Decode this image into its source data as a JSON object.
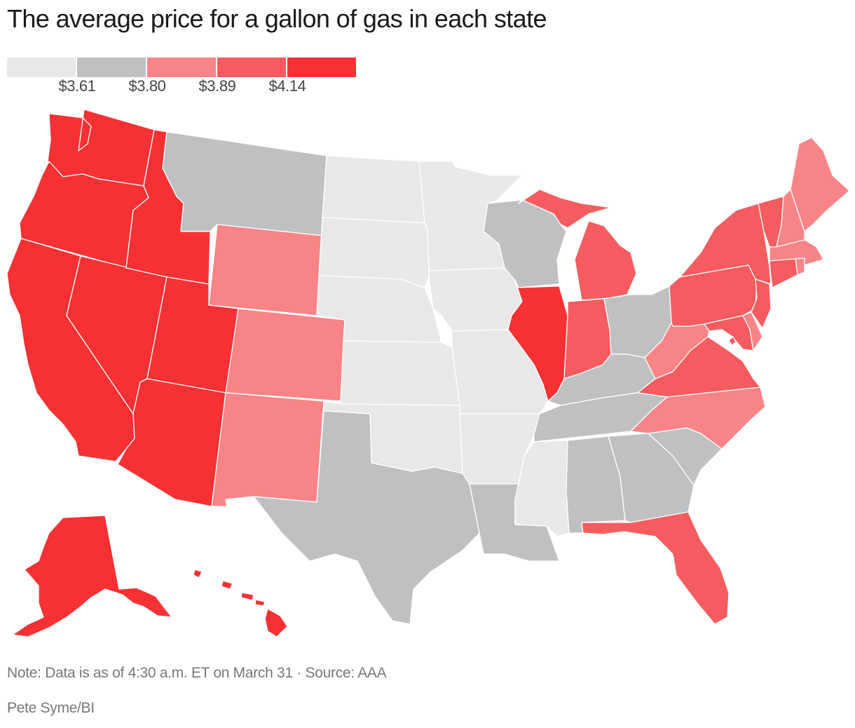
{
  "title": "The average price for a gallon of gas in each state",
  "legend": {
    "colors": [
      "#e8e8e8",
      "#bfc0c2",
      "#f98487",
      "#f55c5f",
      "#f53134"
    ],
    "ticks": [
      "$3.61",
      "$3.80",
      "$3.89",
      "$4.14"
    ]
  },
  "map_data": {
    "type": "choropleth",
    "bins": [
      {
        "min": null,
        "max": 3.61,
        "color": "#e8e8e8"
      },
      {
        "min": 3.61,
        "max": 3.8,
        "color": "#bfc0c2"
      },
      {
        "min": 3.8,
        "max": 3.89,
        "color": "#f98487"
      },
      {
        "min": 3.89,
        "max": 4.14,
        "color": "#f55c5f"
      },
      {
        "min": 4.14,
        "max": null,
        "color": "#f53134"
      }
    ],
    "states": [
      {
        "code": "WA",
        "bin": 4
      },
      {
        "code": "OR",
        "bin": 4
      },
      {
        "code": "CA",
        "bin": 4
      },
      {
        "code": "NV",
        "bin": 4
      },
      {
        "code": "ID",
        "bin": 4
      },
      {
        "code": "UT",
        "bin": 4
      },
      {
        "code": "AZ",
        "bin": 4
      },
      {
        "code": "AK",
        "bin": 4
      },
      {
        "code": "HI",
        "bin": 4
      },
      {
        "code": "IL",
        "bin": 4
      },
      {
        "code": "MT",
        "bin": 1
      },
      {
        "code": "TX",
        "bin": 1
      },
      {
        "code": "LA",
        "bin": 1
      },
      {
        "code": "WI",
        "bin": 1
      },
      {
        "code": "OH",
        "bin": 1
      },
      {
        "code": "KY",
        "bin": 1
      },
      {
        "code": "TN",
        "bin": 1
      },
      {
        "code": "AL",
        "bin": 1
      },
      {
        "code": "GA",
        "bin": 1
      },
      {
        "code": "SC",
        "bin": 1
      },
      {
        "code": "WY",
        "bin": 2
      },
      {
        "code": "CO",
        "bin": 2
      },
      {
        "code": "NM",
        "bin": 2
      },
      {
        "code": "WV",
        "bin": 2
      },
      {
        "code": "NC",
        "bin": 2
      },
      {
        "code": "ME",
        "bin": 2
      },
      {
        "code": "NH",
        "bin": 2
      },
      {
        "code": "MA",
        "bin": 2
      },
      {
        "code": "RI",
        "bin": 2
      },
      {
        "code": "DE",
        "bin": 2
      },
      {
        "code": "MI",
        "bin": 3
      },
      {
        "code": "IN",
        "bin": 3
      },
      {
        "code": "PA",
        "bin": 3
      },
      {
        "code": "NY",
        "bin": 3
      },
      {
        "code": "VT",
        "bin": 3
      },
      {
        "code": "CT",
        "bin": 3
      },
      {
        "code": "NJ",
        "bin": 3
      },
      {
        "code": "MD",
        "bin": 3
      },
      {
        "code": "VA",
        "bin": 3
      },
      {
        "code": "FL",
        "bin": 3
      },
      {
        "code": "DC",
        "bin": 3
      },
      {
        "code": "ND",
        "bin": 0
      },
      {
        "code": "SD",
        "bin": 0
      },
      {
        "code": "NE",
        "bin": 0
      },
      {
        "code": "KS",
        "bin": 0
      },
      {
        "code": "OK",
        "bin": 0
      },
      {
        "code": "MN",
        "bin": 0
      },
      {
        "code": "IA",
        "bin": 0
      },
      {
        "code": "MO",
        "bin": 0
      },
      {
        "code": "AR",
        "bin": 0
      },
      {
        "code": "MS",
        "bin": 0
      }
    ]
  },
  "note": "Note: Data is as of 4:30 a.m. ET on March 31 · Source: AAA",
  "credit": "Pete Syme/BI"
}
